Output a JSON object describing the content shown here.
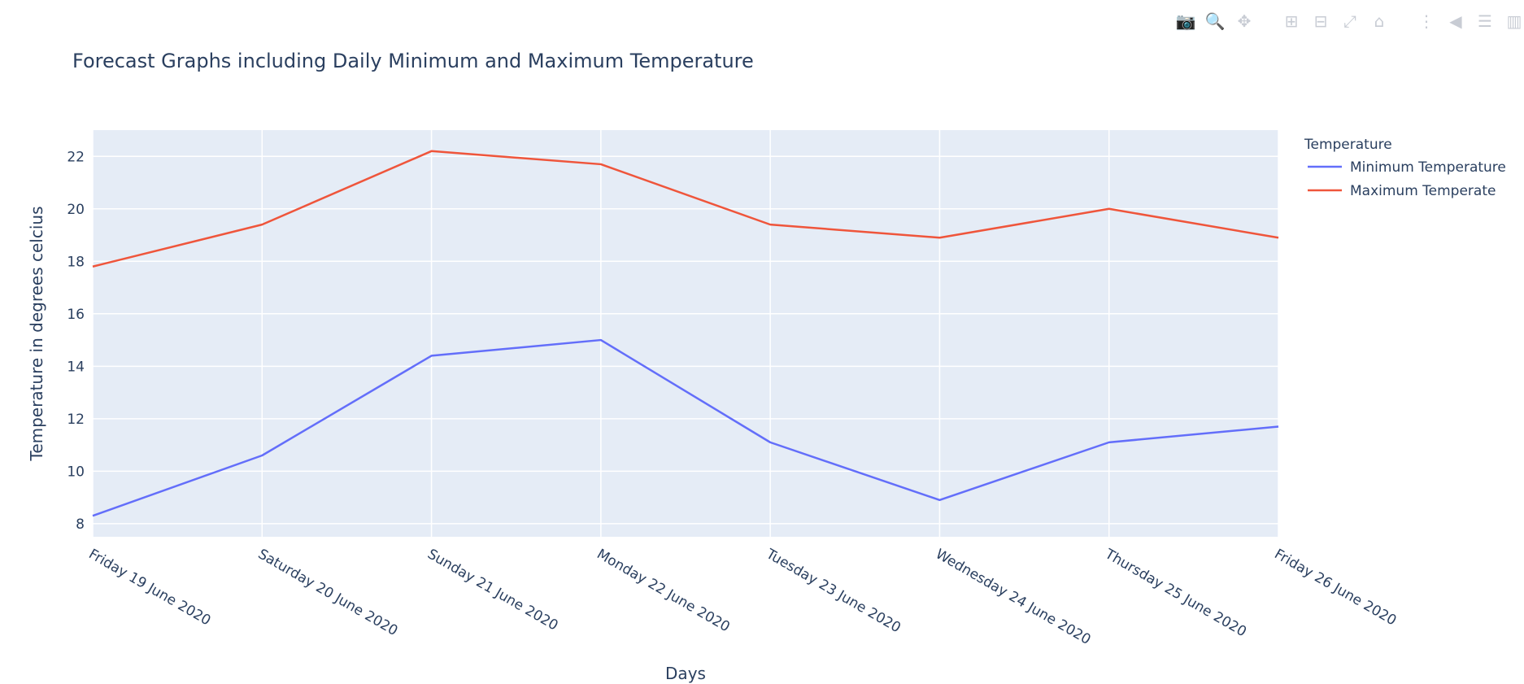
{
  "toolbar": {
    "icons": [
      "camera-icon",
      "zoom-icon",
      "pan-icon",
      "zoom-in-icon",
      "zoom-out-icon",
      "autoscale-icon",
      "home-icon",
      "spike-lines-icon",
      "hover-closest-icon",
      "hover-compare-icon",
      "plotly-logo-icon"
    ],
    "glyphs": [
      "📷",
      "🔍",
      "✥",
      "⊞",
      "⊟",
      "⤢",
      "⌂",
      "⋮",
      "◀",
      "☰",
      "▥"
    ]
  },
  "chart_data": {
    "type": "line",
    "title": "Forecast Graphs including Daily Minimum and Maximum Temperature",
    "xlabel": "Days",
    "ylabel": "Temperature in degrees celcius",
    "categories": [
      "Friday 19 June 2020",
      "Saturday 20 June 2020",
      "Sunday 21 June 2020",
      "Monday 22 June 2020",
      "Tuesday 23 June 2020",
      "Wednesday 24 June 2020",
      "Thursday 25 June 2020",
      "Friday 26 June 2020"
    ],
    "ylim": [
      7.5,
      23
    ],
    "yticks": [
      8,
      10,
      12,
      14,
      16,
      18,
      20,
      22
    ],
    "grid": true,
    "legend": {
      "title": "Temperature",
      "position": "right"
    },
    "series": [
      {
        "name": "Minimum Temperature",
        "color": "#636efa",
        "values": [
          8.3,
          10.6,
          14.4,
          15.0,
          11.1,
          8.9,
          11.1,
          11.7
        ]
      },
      {
        "name": "Maximum Temperate",
        "color": "#ef553b",
        "values": [
          17.8,
          19.4,
          22.2,
          21.7,
          19.4,
          18.9,
          20.0,
          18.9
        ]
      }
    ]
  }
}
